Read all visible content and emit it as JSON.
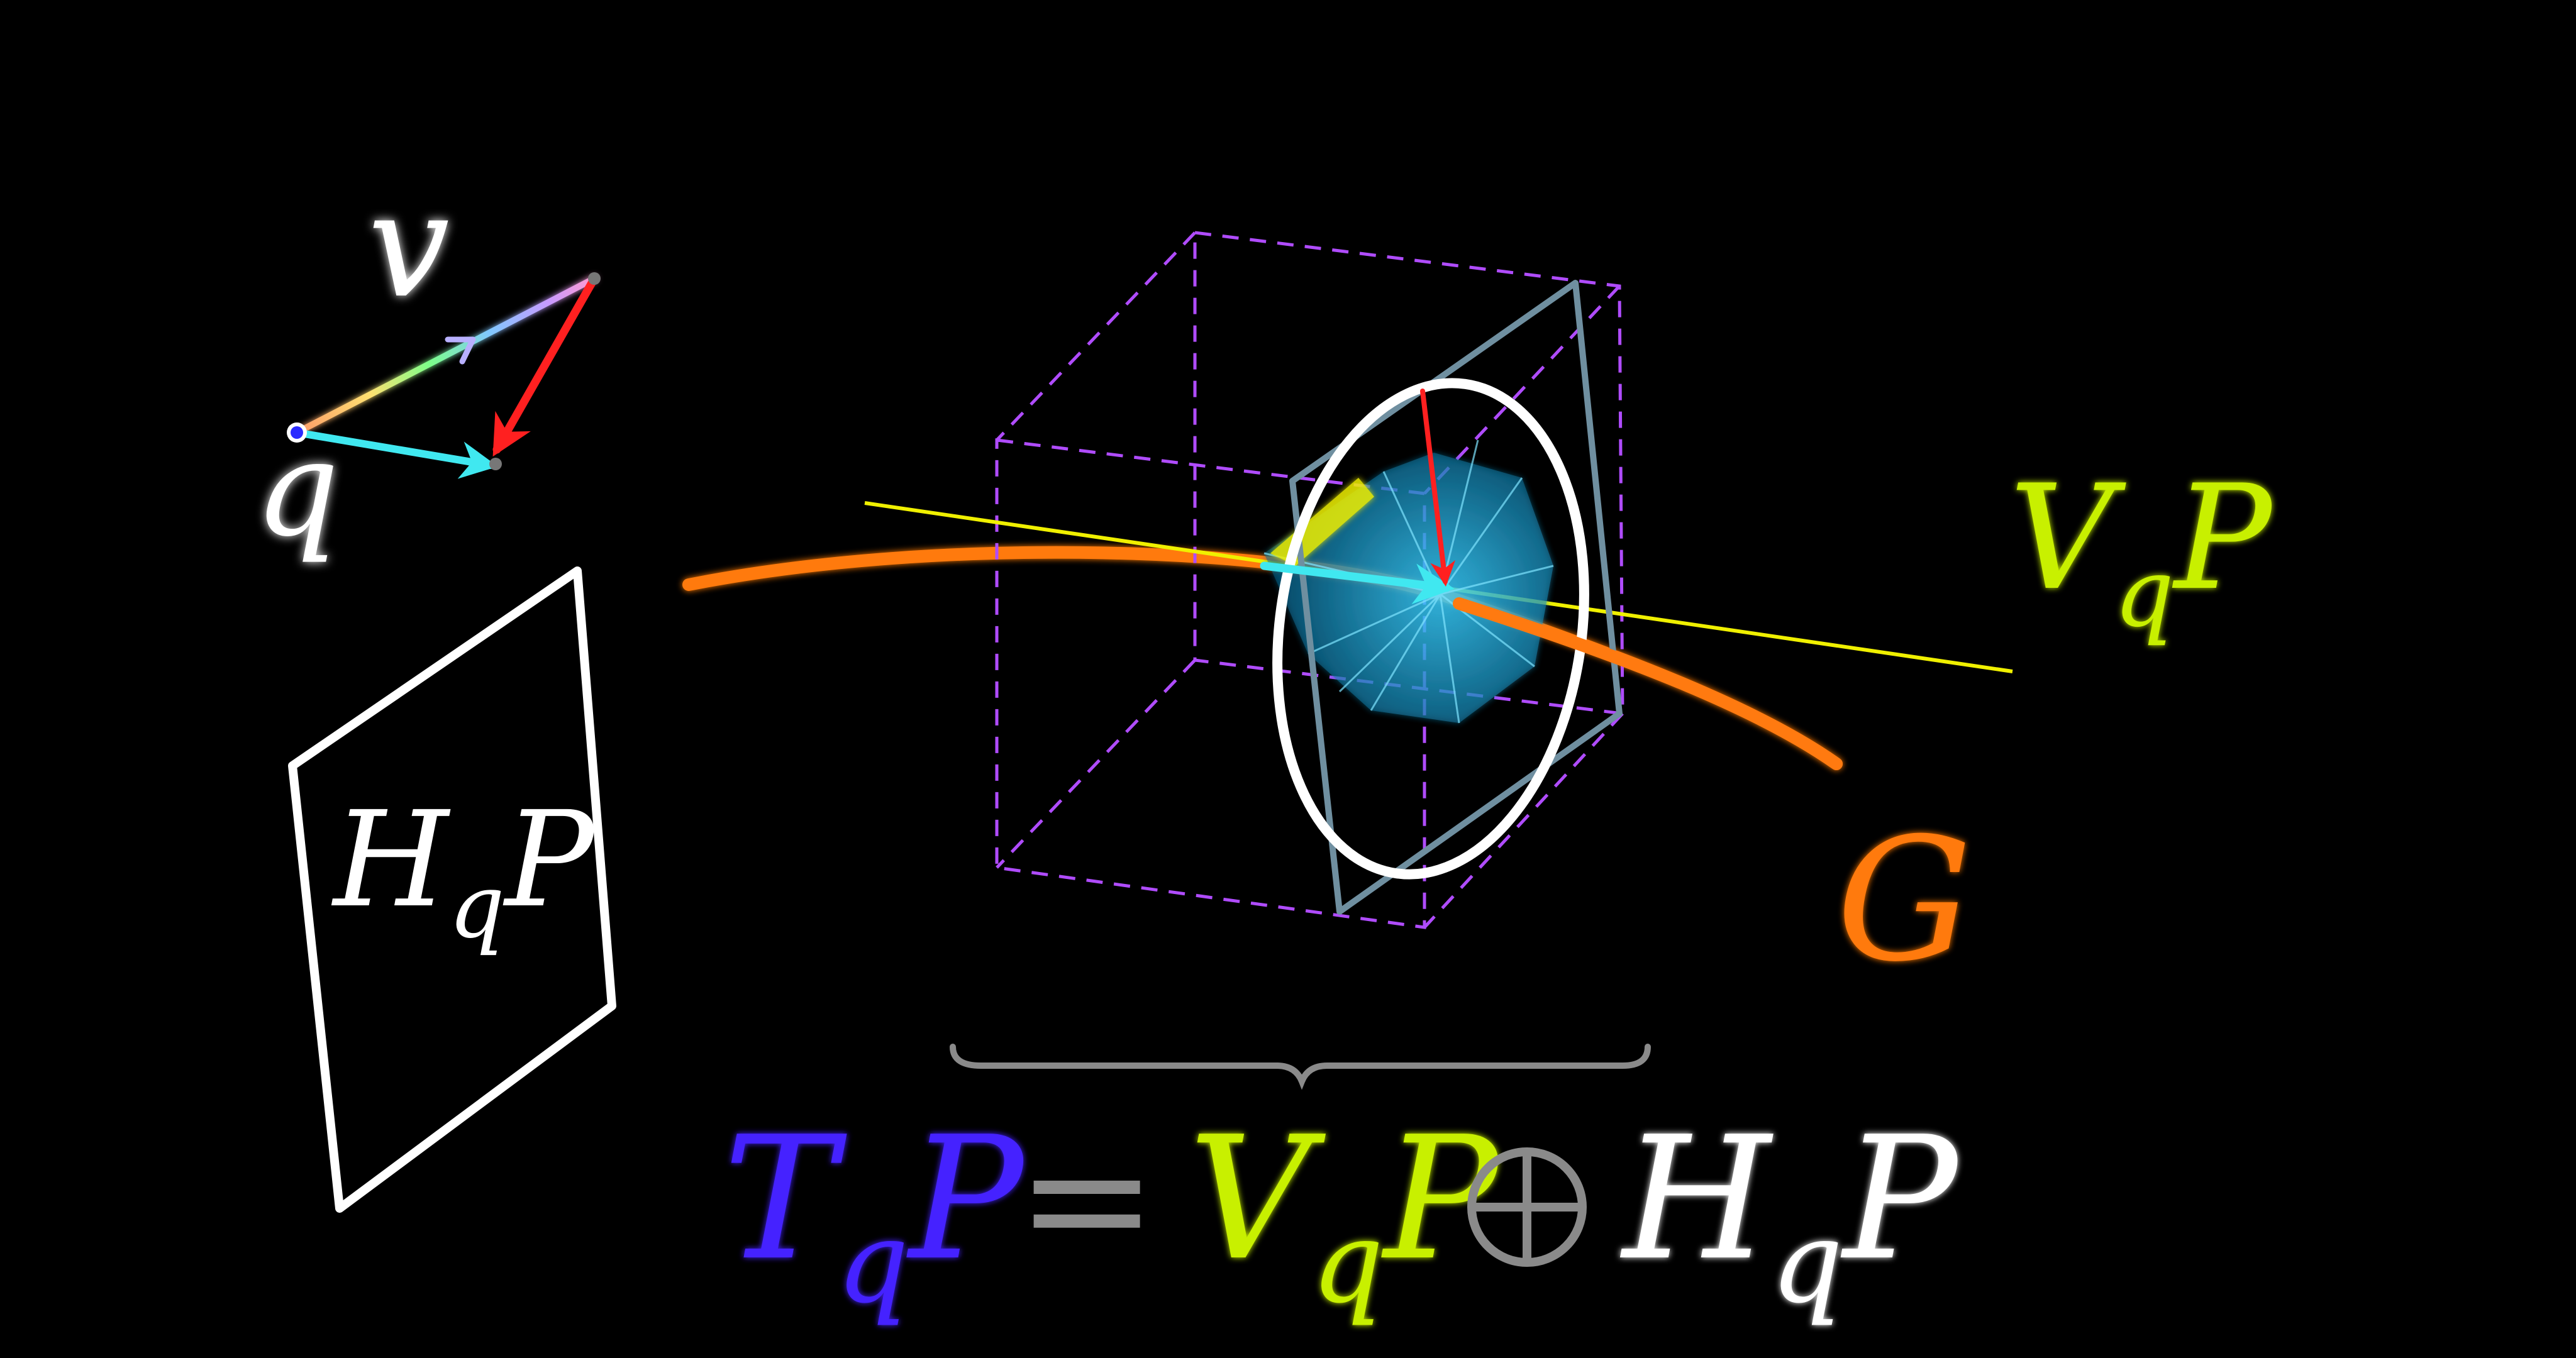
{
  "labels": {
    "v": "v",
    "q": "q",
    "hqp_box": {
      "main": "H",
      "sub": "q",
      "tail": "P"
    },
    "vqp_side": {
      "main": "V",
      "sub": "q",
      "tail": "P"
    },
    "g": "G"
  },
  "equation": {
    "t": "T",
    "t_sub": "q",
    "t_tail": "P",
    "equals": "=",
    "v": "V",
    "v_sub": "q",
    "v_tail": "P",
    "h": "H",
    "h_sub": "q",
    "h_tail": "P"
  },
  "colors": {
    "background": "#000000",
    "white": "#ffffff",
    "t_blue": "#4422ff",
    "v_green": "#c8f000",
    "g_orange": "#ff7a10",
    "cube_purple": "#b04cff",
    "frame_steel": "#6f8fa0",
    "cone_cyan": "#1aa6d8",
    "arrow_cyan": "#40e8f0",
    "arrow_red": "#ff2020",
    "line_yellow": "#f0f000",
    "brace_gray": "#8a8a8a",
    "oplus_gray": "#8a8a8a"
  },
  "icons": {
    "oplus": "direct-sum-icon"
  }
}
